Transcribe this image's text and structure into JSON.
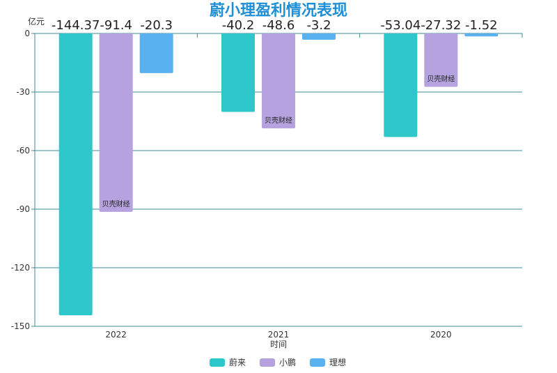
{
  "chart_data": {
    "type": "bar",
    "title": "蔚小理盈利情况表现",
    "ylabel": "亿元",
    "xlabel": "时间",
    "categories": [
      "2022",
      "2021",
      "2020"
    ],
    "series": [
      {
        "name": "蔚来",
        "color": "#2ec7c9",
        "values": [
          -144.37,
          -40.2,
          -53.04
        ]
      },
      {
        "name": "小鹏",
        "color": "#b6a2de",
        "values": [
          -91.4,
          -48.6,
          -27.32
        ]
      },
      {
        "name": "理想",
        "color": "#5ab1ef",
        "values": [
          -20.3,
          -3.2,
          -1.52
        ]
      }
    ],
    "value_labels": [
      [
        "-144.37",
        "-40.2",
        "-53.04"
      ],
      [
        "-91.4",
        "-48.6",
        "-27.32"
      ],
      [
        "-20.3",
        "-3.2",
        "-1.52"
      ]
    ],
    "ylim": [
      -150,
      0
    ],
    "yticks": [
      0,
      -30,
      -60,
      -90,
      -120,
      -150
    ],
    "annotations": [
      {
        "text": "贝壳财经",
        "category": "2022",
        "series": "小鹏"
      },
      {
        "text": "贝壳财经",
        "category": "2021",
        "series": "小鹏"
      },
      {
        "text": "贝壳财经",
        "category": "2020",
        "series": "小鹏"
      }
    ],
    "grid": true,
    "legend_position": "bottom"
  }
}
